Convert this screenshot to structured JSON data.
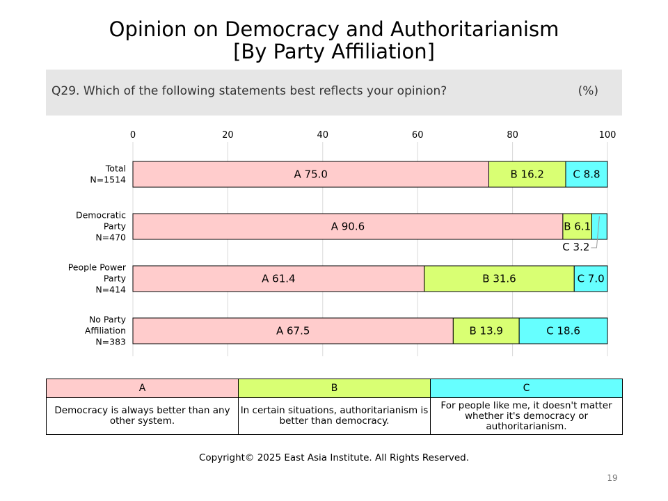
{
  "title_line1": "Opinion on Democracy and Authoritarianism",
  "title_line2": "[By Party Affiliation]",
  "question": "Q29. Which of the following statements best reflects your opinion?",
  "unit": "(%)",
  "chart_data": {
    "type": "bar",
    "orientation": "horizontal-stacked-100",
    "xlim": [
      0,
      100
    ],
    "xticks": [
      0,
      20,
      40,
      60,
      80,
      100
    ],
    "grid": true,
    "categories": [
      [
        "Total",
        "N=1514"
      ],
      [
        "Democratic",
        "Party",
        "N=470"
      ],
      [
        "People Power",
        "Party",
        "N=414"
      ],
      [
        "No Party",
        "Affiliation",
        "N=383"
      ]
    ],
    "series": [
      {
        "name": "A",
        "color": "#ffcccc",
        "values": [
          75.0,
          90.6,
          61.4,
          67.5
        ]
      },
      {
        "name": "B",
        "color": "#d9ff73",
        "values": [
          16.2,
          6.1,
          31.6,
          13.9
        ]
      },
      {
        "name": "C",
        "color": "#66ffff",
        "values": [
          8.8,
          3.2,
          7.0,
          18.6
        ]
      }
    ]
  },
  "legend": {
    "headers": [
      "A",
      "B",
      "C"
    ],
    "descriptions": [
      "Democracy is always better than any other system.",
      "In certain situations, authoritarianism is better than democracy.",
      "For people like me, it doesn't matter whether it's democracy or authoritarianism."
    ]
  },
  "copyright": "Copyright© 2025 East Asia Institute. All Rights Reserved.",
  "page_number": "19"
}
